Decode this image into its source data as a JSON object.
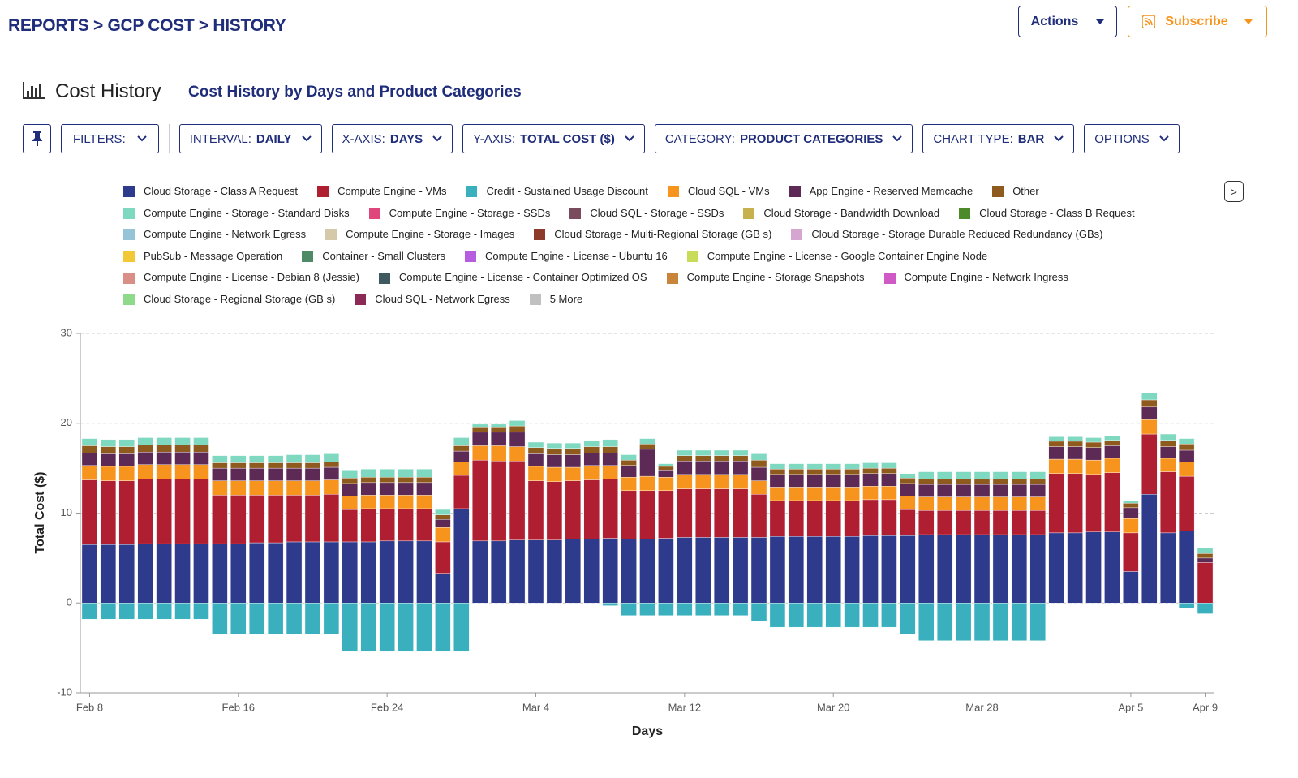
{
  "header": {
    "breadcrumb": "REPORTS > GCP COST > HISTORY",
    "actions": "Actions",
    "subscribe": "Subscribe"
  },
  "section": {
    "title": "Cost History",
    "subtitle": "Cost History by Days and Product Categories"
  },
  "toolbar": {
    "filters": "FILTERS:",
    "items": [
      {
        "label": "INTERVAL:",
        "value": "DAILY"
      },
      {
        "label": "X-AXIS:",
        "value": "DAYS"
      },
      {
        "label": "Y-AXIS:",
        "value": "TOTAL COST ($)"
      },
      {
        "label": "CATEGORY:",
        "value": "PRODUCT CATEGORIES"
      },
      {
        "label": "CHART TYPE:",
        "value": "BAR"
      },
      {
        "label": "OPTIONS",
        "value": null
      }
    ]
  },
  "legend_next": ">",
  "chart_data": {
    "type": "bar",
    "stacked": true,
    "x_label": "Days",
    "y_label": "Total Cost ($)",
    "grid": true,
    "ylim": [
      -10,
      30
    ],
    "yticks": [
      -10,
      0,
      10,
      20,
      30
    ],
    "categories": [
      "Feb 8",
      null,
      null,
      null,
      null,
      null,
      null,
      null,
      "Feb 16",
      null,
      null,
      null,
      null,
      null,
      null,
      null,
      "Feb 24",
      null,
      null,
      null,
      null,
      null,
      null,
      null,
      "Mar 4",
      null,
      null,
      null,
      null,
      null,
      null,
      null,
      "Mar 12",
      null,
      null,
      null,
      null,
      null,
      null,
      null,
      "Mar 20",
      null,
      null,
      null,
      null,
      null,
      null,
      null,
      "Mar 28",
      null,
      null,
      null,
      null,
      null,
      null,
      null,
      "Apr 5",
      null,
      null,
      null,
      "Apr 9"
    ],
    "series": [
      {
        "name": "Cloud Storage - Class A Request",
        "color": "#2e3a8c",
        "values": [
          6.5,
          6.5,
          6.5,
          6.6,
          6.6,
          6.6,
          6.6,
          6.6,
          6.6,
          6.7,
          6.7,
          6.8,
          6.8,
          6.8,
          6.8,
          6.8,
          6.9,
          6.9,
          6.9,
          3.3,
          10.5,
          6.9,
          6.9,
          7.0,
          7.0,
          7.0,
          7.1,
          7.1,
          7.2,
          7.1,
          7.1,
          7.2,
          7.3,
          7.3,
          7.3,
          7.3,
          7.3,
          7.4,
          7.4,
          7.4,
          7.4,
          7.4,
          7.5,
          7.5,
          7.5,
          7.6,
          7.6,
          7.6,
          7.6,
          7.6,
          7.6,
          7.6,
          7.8,
          7.8,
          7.9,
          7.9,
          3.5,
          12.1,
          7.8,
          8.0,
          0
        ]
      },
      {
        "name": "Compute Engine - VMs",
        "color": "#b01e31",
        "values": [
          7.2,
          7.1,
          7.1,
          7.2,
          7.2,
          7.2,
          7.2,
          5.4,
          5.4,
          5.3,
          5.3,
          5.2,
          5.2,
          5.3,
          3.6,
          3.7,
          3.6,
          3.6,
          3.6,
          3.5,
          3.7,
          9.0,
          8.9,
          8.8,
          6.6,
          6.5,
          6.5,
          6.6,
          6.6,
          5.4,
          5.4,
          5.3,
          5.4,
          5.4,
          5.4,
          5.4,
          4.8,
          4.0,
          4.0,
          4.0,
          4.0,
          4.0,
          4.0,
          4.0,
          2.9,
          2.7,
          2.7,
          2.7,
          2.7,
          2.7,
          2.7,
          2.7,
          6.6,
          6.6,
          6.4,
          6.6,
          4.3,
          6.7,
          6.8,
          6.1,
          4.5
        ]
      },
      {
        "name": "Credit - Sustained Usage Discount",
        "color": "#3ab0bf",
        "values": [
          -1.8,
          -1.8,
          -1.8,
          -1.8,
          -1.8,
          -1.8,
          -1.8,
          -3.5,
          -3.5,
          -3.5,
          -3.5,
          -3.5,
          -3.5,
          -3.5,
          -5.4,
          -5.4,
          -5.4,
          -5.4,
          -5.4,
          -5.4,
          -5.4,
          0,
          0,
          0,
          0,
          0,
          0,
          0,
          -0.3,
          -1.4,
          -1.4,
          -1.4,
          -1.4,
          -1.4,
          -1.4,
          -1.4,
          -2.0,
          -2.7,
          -2.7,
          -2.7,
          -2.7,
          -2.7,
          -2.7,
          -2.7,
          -3.5,
          -4.2,
          -4.2,
          -4.2,
          -4.2,
          -4.2,
          -4.2,
          -4.2,
          0,
          0,
          0,
          0,
          0,
          0,
          0,
          -0.6,
          -1.2
        ]
      },
      {
        "name": "Cloud SQL - VMs",
        "color": "#f7941d",
        "values": [
          1.6,
          1.6,
          1.6,
          1.6,
          1.6,
          1.6,
          1.6,
          1.6,
          1.6,
          1.6,
          1.6,
          1.6,
          1.6,
          1.6,
          1.5,
          1.5,
          1.5,
          1.5,
          1.5,
          1.6,
          1.5,
          1.6,
          1.7,
          1.6,
          1.6,
          1.6,
          1.5,
          1.6,
          1.5,
          1.5,
          1.6,
          1.5,
          1.6,
          1.6,
          1.6,
          1.6,
          1.5,
          1.5,
          1.5,
          1.5,
          1.5,
          1.5,
          1.5,
          1.5,
          1.5,
          1.5,
          1.5,
          1.5,
          1.5,
          1.5,
          1.5,
          1.5,
          1.6,
          1.6,
          1.6,
          1.6,
          1.6,
          1.6,
          1.5,
          1.6,
          0
        ]
      },
      {
        "name": "App Engine - Reserved Memcache",
        "color": "#5c2a55",
        "values": [
          1.4,
          1.4,
          1.4,
          1.4,
          1.4,
          1.4,
          1.4,
          1.4,
          1.4,
          1.4,
          1.4,
          1.4,
          1.4,
          1.4,
          1.4,
          1.4,
          1.4,
          1.4,
          1.4,
          0.9,
          1.2,
          1.5,
          1.5,
          1.6,
          1.4,
          1.4,
          1.4,
          1.4,
          1.4,
          1.3,
          3.0,
          0.8,
          1.5,
          1.5,
          1.5,
          1.5,
          1.5,
          1.4,
          1.4,
          1.4,
          1.4,
          1.4,
          1.4,
          1.4,
          1.4,
          1.4,
          1.4,
          1.4,
          1.4,
          1.4,
          1.4,
          1.4,
          1.4,
          1.4,
          1.4,
          1.4,
          1.2,
          1.4,
          1.3,
          1.3,
          0.5
        ]
      },
      {
        "name": "Other",
        "color": "#8f5a1e",
        "values": [
          0.8,
          0.8,
          0.8,
          0.8,
          0.8,
          0.8,
          0.8,
          0.6,
          0.6,
          0.6,
          0.6,
          0.6,
          0.6,
          0.6,
          0.6,
          0.6,
          0.6,
          0.6,
          0.6,
          0.5,
          0.6,
          0.6,
          0.6,
          0.7,
          0.7,
          0.7,
          0.7,
          0.7,
          0.7,
          0.6,
          0.6,
          0.4,
          0.6,
          0.6,
          0.6,
          0.6,
          0.8,
          0.6,
          0.6,
          0.6,
          0.6,
          0.6,
          0.6,
          0.6,
          0.6,
          0.6,
          0.6,
          0.6,
          0.6,
          0.6,
          0.6,
          0.6,
          0.6,
          0.6,
          0.6,
          0.6,
          0.5,
          0.8,
          0.7,
          0.7,
          0.5
        ]
      },
      {
        "name": "Compute Engine - Storage - Standard Disks",
        "color": "#7ed9c0",
        "values": [
          0.8,
          0.8,
          0.8,
          0.8,
          0.8,
          0.8,
          0.8,
          0.8,
          0.8,
          0.8,
          0.8,
          0.9,
          0.9,
          0.9,
          0.9,
          0.9,
          0.9,
          0.9,
          0.9,
          0.6,
          0.9,
          0.3,
          0.3,
          0.6,
          0.6,
          0.6,
          0.6,
          0.7,
          0.8,
          0.6,
          0.6,
          0.3,
          0.6,
          0.6,
          0.6,
          0.6,
          0.7,
          0.6,
          0.6,
          0.6,
          0.6,
          0.6,
          0.6,
          0.6,
          0.5,
          0.8,
          0.8,
          0.8,
          0.8,
          0.8,
          0.8,
          0.8,
          0.5,
          0.5,
          0.5,
          0.5,
          0.3,
          0.8,
          0.7,
          0.6,
          0.6
        ]
      }
    ],
    "other_legend_entries": [
      {
        "name": "Compute Engine - Storage - SSDs",
        "color": "#e0457b"
      },
      {
        "name": "Cloud SQL - Storage - SSDs",
        "color": "#7a4a5e"
      },
      {
        "name": "Cloud Storage - Bandwidth Download",
        "color": "#c7b14e"
      },
      {
        "name": "Cloud Storage - Class B Request",
        "color": "#4d8a2a"
      },
      {
        "name": "Compute Engine - Network Egress",
        "color": "#94c4d6"
      },
      {
        "name": "Compute Engine - Storage - Images",
        "color": "#d4c9a8"
      },
      {
        "name": "Cloud Storage - Multi-Regional Storage (GB s)",
        "color": "#8c3a2a"
      },
      {
        "name": "Cloud Storage - Storage Durable Reduced Redundancy (GBs)",
        "color": "#d4a6d0"
      },
      {
        "name": "PubSub - Message Operation",
        "color": "#f2c837"
      },
      {
        "name": "Container - Small Clusters",
        "color": "#4f8a66"
      },
      {
        "name": "Compute Engine - License - Ubuntu 16",
        "color": "#b65de0"
      },
      {
        "name": "Compute Engine - License - Google Container Engine Node",
        "color": "#c8dc5a"
      },
      {
        "name": "Compute Engine - License - Debian 8 (Jessie)",
        "color": "#d98f86"
      },
      {
        "name": "Compute Engine - License - Container Optimized OS",
        "color": "#3f5a5e"
      },
      {
        "name": "Compute Engine - Storage Snapshots",
        "color": "#c8853a"
      },
      {
        "name": "Compute Engine - Network Ingress",
        "color": "#cf5ac5"
      },
      {
        "name": "Cloud Storage - Regional Storage (GB s)",
        "color": "#8fd98a"
      },
      {
        "name": "Cloud SQL - Network Egress",
        "color": "#8a2a55"
      },
      {
        "name": "5 More",
        "color": "#c0c0c0"
      }
    ]
  }
}
